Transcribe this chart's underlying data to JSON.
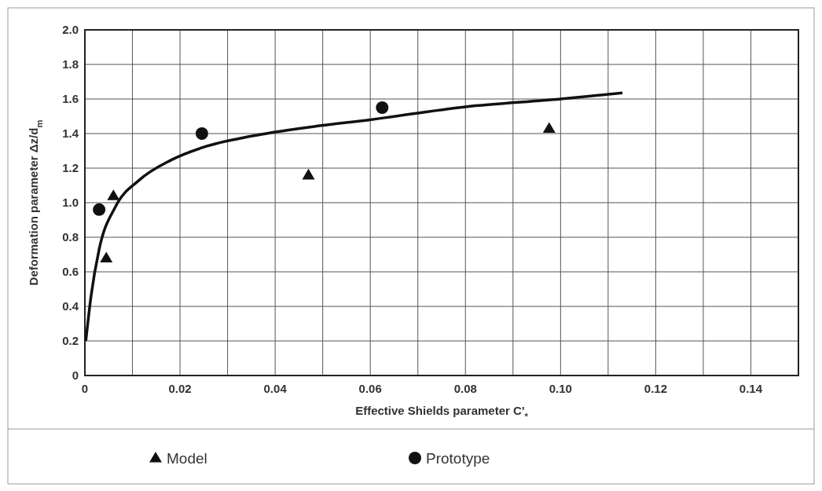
{
  "chart_data": {
    "type": "scatter",
    "xlabel": "Effective Shields parameter C'$_{*}$",
    "ylabel": "Deformation parameter Δz/d$_{m}$",
    "xlim": [
      0,
      0.15
    ],
    "ylim": [
      0,
      2.0
    ],
    "xticks": [
      0,
      {
        "value": 0.01,
        "label": null
      },
      {
        "value": 0.02,
        "label": "0.02"
      },
      {
        "value": 0.03,
        "label": null
      },
      {
        "value": 0.04,
        "label": "0.04"
      },
      {
        "value": 0.05,
        "label": null
      },
      {
        "value": 0.06,
        "label": "0.06"
      },
      {
        "value": 0.07,
        "label": null
      },
      {
        "value": 0.08,
        "label": "0.08"
      },
      {
        "value": 0.09,
        "label": null
      },
      {
        "value": 0.1,
        "label": "0.10"
      },
      {
        "value": 0.11,
        "label": null
      },
      {
        "value": 0.12,
        "label": "0.12"
      },
      {
        "value": 0.13,
        "label": null
      },
      {
        "value": 0.14,
        "label": "0.14"
      }
    ],
    "yticks": [
      0,
      0.2,
      0.4,
      0.6,
      0.8,
      {
        "value": 1.0,
        "label": "1.0"
      },
      1.2,
      1.4,
      1.6,
      1.8,
      {
        "value": 2.0,
        "label": "2.0"
      }
    ],
    "grid": true,
    "legend": "bottom",
    "series": [
      {
        "name": "Model",
        "color": "#111111",
        "marker": "triangle",
        "x": [
          0.0045,
          0.006,
          0.047,
          0.0976
        ],
        "values": [
          0.68,
          1.04,
          1.16,
          1.43
        ]
      },
      {
        "name": "Prototype",
        "color": "#111111",
        "marker": "circle",
        "x": [
          0.003,
          0.0246,
          0.0625
        ],
        "values": [
          0.96,
          1.4,
          1.55
        ]
      },
      {
        "type": "line",
        "color": "#111111",
        "x": [
          0.0002,
          0.0013,
          0.003,
          0.0064,
          0.0114,
          0.018,
          0.0248,
          0.035,
          0.048,
          0.06,
          0.08,
          0.1,
          0.113
        ],
        "values": [
          0.2,
          0.46,
          0.73,
          0.975,
          1.13,
          1.245,
          1.32,
          1.385,
          1.44,
          1.48,
          1.555,
          1.6,
          1.635
        ]
      }
    ]
  }
}
